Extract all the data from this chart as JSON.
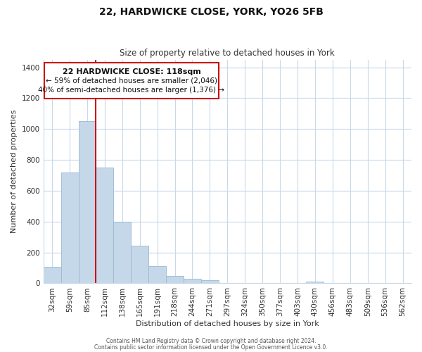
{
  "title_line1": "22, HARDWICKE CLOSE, YORK, YO26 5FB",
  "title_line2": "Size of property relative to detached houses in York",
  "xlabel": "Distribution of detached houses by size in York",
  "ylabel": "Number of detached properties",
  "categories": [
    "32sqm",
    "59sqm",
    "85sqm",
    "112sqm",
    "138sqm",
    "165sqm",
    "191sqm",
    "218sqm",
    "244sqm",
    "271sqm",
    "297sqm",
    "324sqm",
    "350sqm",
    "377sqm",
    "403sqm",
    "430sqm",
    "456sqm",
    "483sqm",
    "509sqm",
    "536sqm",
    "562sqm"
  ],
  "values": [
    105,
    720,
    1050,
    750,
    400,
    245,
    110,
    48,
    28,
    22,
    0,
    0,
    0,
    0,
    0,
    10,
    0,
    0,
    0,
    0,
    0
  ],
  "bar_color": "#c5d8ea",
  "bar_edge_color": "#9ab8d0",
  "vline_color": "#cc0000",
  "ylim": [
    0,
    1450
  ],
  "yticks": [
    0,
    200,
    400,
    600,
    800,
    1000,
    1200,
    1400
  ],
  "annotation_title": "22 HARDWICKE CLOSE: 118sqm",
  "annotation_line2": "← 59% of detached houses are smaller (2,046)",
  "annotation_line3": "40% of semi-detached houses are larger (1,376) →",
  "annotation_box_color": "#ffffff",
  "annotation_box_edge_color": "#cc0000",
  "footer_line1": "Contains HM Land Registry data © Crown copyright and database right 2024.",
  "footer_line2": "Contains public sector information licensed under the Open Government Licence v3.0.",
  "background_color": "#ffffff",
  "grid_color": "#c8d8e8",
  "title_fontsize": 10,
  "subtitle_fontsize": 8.5,
  "axis_label_fontsize": 8,
  "tick_fontsize": 7.5,
  "annotation_title_fontsize": 8,
  "annotation_text_fontsize": 7.5,
  "footer_fontsize": 5.5
}
